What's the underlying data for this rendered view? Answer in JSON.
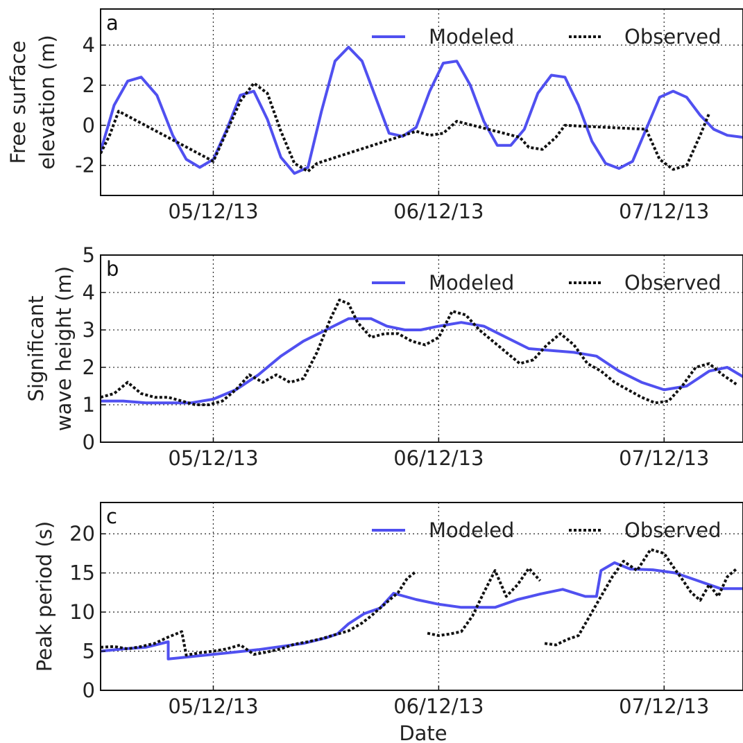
{
  "figure": {
    "xlabel": "Date"
  },
  "legend": {
    "modeled": "Modeled",
    "observed": "Observed"
  },
  "colors": {
    "modeled": "#5050f0",
    "observed": "#111111"
  },
  "chart_data": [
    {
      "type": "line",
      "panel_label": "a",
      "ylabel_lines": [
        "Free surface",
        "elevation (m)"
      ],
      "x_unit": "day since 04/12/13 00:00",
      "xlim": [
        0.5,
        3.35
      ],
      "ylim": [
        -3.5,
        5.8
      ],
      "yticks": [
        "-2",
        "0",
        "2",
        "4"
      ],
      "ytick_values": [
        -2,
        0,
        2,
        4
      ],
      "xtick_labels": [
        "05/12/13",
        "06/12/13",
        "07/12/13"
      ],
      "xtick_values": [
        1,
        2,
        3
      ],
      "legend_position": "top-right",
      "grid": true,
      "series": [
        {
          "name": "Modeled",
          "x": [
            0.5,
            0.56,
            0.62,
            0.68,
            0.75,
            0.82,
            0.88,
            0.94,
            1.0,
            1.06,
            1.12,
            1.18,
            1.24,
            1.3,
            1.36,
            1.42,
            1.48,
            1.54,
            1.6,
            1.66,
            1.72,
            1.78,
            1.84,
            1.9,
            1.96,
            2.02,
            2.08,
            2.14,
            2.2,
            2.26,
            2.32,
            2.38,
            2.44,
            2.5,
            2.56,
            2.62,
            2.68,
            2.74,
            2.8,
            2.86,
            2.92,
            2.98,
            3.04,
            3.1,
            3.16,
            3.22,
            3.28,
            3.35
          ],
          "y": [
            -1.3,
            1.0,
            2.2,
            2.4,
            1.5,
            -0.5,
            -1.7,
            -2.1,
            -1.7,
            -0.2,
            1.5,
            1.7,
            0.3,
            -1.6,
            -2.4,
            -2.1,
            0.7,
            3.2,
            3.9,
            3.2,
            1.4,
            -0.4,
            -0.55,
            -0.1,
            1.7,
            3.1,
            3.2,
            2.0,
            0.2,
            -1.0,
            -1.0,
            -0.2,
            1.6,
            2.5,
            2.4,
            1.0,
            -0.8,
            -1.9,
            -2.15,
            -1.8,
            -0.2,
            1.4,
            1.7,
            1.4,
            0.5,
            -0.2,
            -0.5,
            -0.6
          ]
        },
        {
          "name": "Observed",
          "x": [
            0.5,
            0.54,
            0.58,
            1.0,
            1.06,
            1.12,
            1.18,
            1.24,
            1.3,
            1.36,
            1.42,
            1.46,
            1.9,
            1.96,
            2.02,
            2.08,
            2.36,
            2.4,
            2.46,
            2.52,
            2.56,
            2.92,
            2.98,
            3.04,
            3.1,
            3.16,
            3.2
          ],
          "y": [
            -1.4,
            -0.5,
            0.7,
            -1.8,
            -0.3,
            1.2,
            2.1,
            1.6,
            -0.3,
            -1.9,
            -2.3,
            -1.9,
            -0.3,
            -0.5,
            -0.4,
            0.2,
            -0.6,
            -1.1,
            -1.2,
            -0.6,
            0.0,
            -0.2,
            -1.7,
            -2.2,
            -2.0,
            -0.5,
            0.6
          ]
        }
      ]
    },
    {
      "type": "line",
      "panel_label": "b",
      "ylabel_lines": [
        "Significant",
        "wave height (m)"
      ],
      "x_unit": "day since 04/12/13 00:00",
      "xlim": [
        0.5,
        3.35
      ],
      "ylim": [
        0,
        5
      ],
      "yticks": [
        "0",
        "1",
        "2",
        "3",
        "4",
        "5"
      ],
      "ytick_values": [
        0,
        1,
        2,
        3,
        4,
        5
      ],
      "xtick_labels": [
        "05/12/13",
        "06/12/13",
        "07/12/13"
      ],
      "xtick_values": [
        1,
        2,
        3
      ],
      "legend_position": "top-right",
      "grid": true,
      "series": [
        {
          "name": "Modeled",
          "x": [
            0.5,
            0.6,
            0.7,
            0.8,
            0.9,
            1.0,
            1.1,
            1.2,
            1.3,
            1.4,
            1.5,
            1.6,
            1.7,
            1.77,
            1.85,
            1.92,
            2.0,
            2.1,
            2.2,
            2.3,
            2.4,
            2.5,
            2.6,
            2.7,
            2.8,
            2.9,
            3.0,
            3.1,
            3.2,
            3.28,
            3.35
          ],
          "y": [
            1.1,
            1.1,
            1.05,
            1.05,
            1.05,
            1.15,
            1.4,
            1.8,
            2.3,
            2.7,
            3.0,
            3.3,
            3.3,
            3.1,
            3.0,
            3.0,
            3.1,
            3.2,
            3.1,
            2.8,
            2.5,
            2.45,
            2.4,
            2.3,
            1.9,
            1.6,
            1.4,
            1.5,
            1.9,
            2.0,
            1.75
          ]
        },
        {
          "name": "Observed",
          "x": [
            0.5,
            0.56,
            0.62,
            0.68,
            0.74,
            0.8,
            0.86,
            0.92,
            0.98,
            1.04,
            1.1,
            1.16,
            1.22,
            1.28,
            1.34,
            1.4,
            1.46,
            1.52,
            1.56,
            1.6,
            1.64,
            1.7,
            1.76,
            1.82,
            1.88,
            1.94,
            2.0,
            2.06,
            2.12,
            2.18,
            2.24,
            2.3,
            2.36,
            2.42,
            2.48,
            2.54,
            2.6,
            2.66,
            2.72,
            2.78,
            2.84,
            2.9,
            2.96,
            3.02,
            3.08,
            3.14,
            3.2,
            3.26,
            3.32
          ],
          "y": [
            1.2,
            1.3,
            1.6,
            1.3,
            1.2,
            1.2,
            1.1,
            1.0,
            1.0,
            1.1,
            1.4,
            1.8,
            1.6,
            1.8,
            1.6,
            1.7,
            2.4,
            3.3,
            3.8,
            3.7,
            3.2,
            2.8,
            2.9,
            2.9,
            2.7,
            2.6,
            2.8,
            3.5,
            3.4,
            3.0,
            2.7,
            2.4,
            2.1,
            2.2,
            2.6,
            2.9,
            2.6,
            2.1,
            1.9,
            1.6,
            1.4,
            1.2,
            1.05,
            1.1,
            1.5,
            2.0,
            2.1,
            1.8,
            1.55
          ]
        }
      ]
    },
    {
      "type": "line",
      "panel_label": "c",
      "ylabel_lines": [
        "Peak period (s)"
      ],
      "x_unit": "day since 04/12/13 00:00",
      "xlim": [
        0.5,
        3.35
      ],
      "ylim": [
        0,
        24
      ],
      "yticks": [
        "0",
        "5",
        "10",
        "15",
        "20"
      ],
      "ytick_values": [
        0,
        5,
        10,
        15,
        20
      ],
      "xtick_labels": [
        "05/12/13",
        "06/12/13",
        "07/12/13"
      ],
      "xtick_values": [
        1,
        2,
        3
      ],
      "legend_position": "top-right",
      "grid": true,
      "series": [
        {
          "name": "Modeled",
          "x": [
            0.5,
            0.6,
            0.7,
            0.8,
            0.8,
            0.9,
            1.0,
            1.1,
            1.2,
            1.3,
            1.4,
            1.5,
            1.55,
            1.6,
            1.67,
            1.74,
            1.8,
            1.9,
            2.0,
            2.1,
            2.25,
            2.35,
            2.45,
            2.55,
            2.65,
            2.7,
            2.72,
            2.78,
            2.85,
            2.95,
            3.05,
            3.15,
            3.25,
            3.35
          ],
          "y": [
            5.0,
            5.3,
            5.5,
            6.2,
            4.0,
            4.3,
            4.6,
            4.9,
            5.2,
            5.6,
            6.0,
            6.7,
            7.2,
            8.5,
            9.8,
            10.5,
            12.4,
            11.6,
            11.0,
            10.6,
            10.6,
            11.6,
            12.3,
            12.9,
            12.0,
            12.0,
            15.3,
            16.3,
            15.5,
            15.4,
            15.0,
            14.0,
            13.0,
            13.0
          ]
        },
        {
          "name": "Observed",
          "x": [
            0.5,
            0.56,
            0.62,
            0.68,
            0.74,
            0.8,
            0.86,
            0.88,
            0.94,
            1.0,
            1.06,
            1.12,
            1.18,
            1.24,
            1.3,
            1.36,
            1.42,
            1.48,
            1.54,
            1.6,
            1.66,
            1.7,
            1.74,
            1.78,
            1.82,
            1.86,
            1.9
          ],
          "y": [
            5.5,
            5.6,
            5.3,
            5.6,
            6.0,
            6.8,
            7.5,
            4.5,
            4.8,
            5.0,
            5.3,
            5.8,
            4.6,
            4.9,
            5.3,
            5.9,
            6.2,
            6.6,
            7.1,
            7.6,
            8.6,
            9.5,
            10.5,
            11.5,
            12.5,
            14.3,
            15.2
          ]
        },
        {
          "name": "Observed",
          "x": [
            1.95,
            2.0,
            2.05,
            2.1,
            2.15,
            2.2,
            2.25,
            2.3,
            2.35,
            2.4,
            2.45
          ],
          "y": [
            7.3,
            7.0,
            7.2,
            7.5,
            9.5,
            12.5,
            15.3,
            12.0,
            13.5,
            15.6,
            14.0
          ]
        },
        {
          "name": "Observed",
          "x": [
            2.47,
            2.52,
            2.57,
            2.62,
            2.67,
            2.72,
            2.77,
            2.82,
            2.88,
            2.94,
            3.0,
            3.04,
            3.08,
            3.12,
            3.16,
            3.2,
            3.24,
            3.28,
            3.32
          ],
          "y": [
            6.0,
            5.8,
            6.5,
            7.0,
            9.5,
            12.0,
            14.5,
            16.5,
            15.3,
            18.0,
            17.5,
            15.8,
            14.2,
            12.5,
            11.5,
            13.5,
            12.0,
            14.5,
            15.5
          ]
        }
      ]
    }
  ]
}
